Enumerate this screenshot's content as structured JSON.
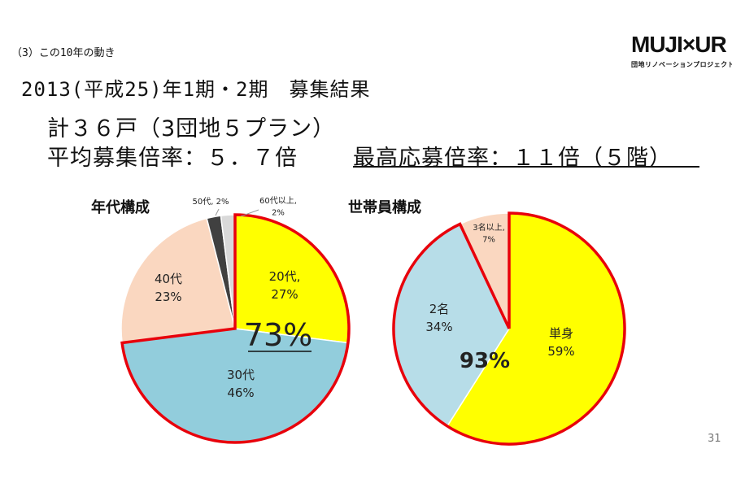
{
  "header": {
    "section_label": "（3）この10年の動き",
    "title": "2013(平成25)年1期・2期　募集結果",
    "line1": "計３６戸（3団地５プラン）",
    "line2": "平均募集倍率：５．７倍",
    "line2_highlight": "最高応募倍率：１１倍（５階）"
  },
  "logo": {
    "main": "MUJI×UR",
    "sub": "団地リノベーションプロジェクト"
  },
  "page_number": "31",
  "colors": {
    "yellow": "#ffff00",
    "light_blue": "#92cddc",
    "pale_blue": "#b7dde8",
    "peach": "#fad7c0",
    "dark_gray": "#404040",
    "light_gray": "#d9d9d9",
    "highlight_border": "#e8000b"
  },
  "chart_data": [
    {
      "type": "pie",
      "title": "年代構成",
      "slices": [
        {
          "label": "20代",
          "value": 27,
          "text": [
            "20代,",
            "27%"
          ],
          "color": "#ffff00",
          "highlight": true
        },
        {
          "label": "30代",
          "value": 46,
          "text": [
            "30代",
            "46%"
          ],
          "color": "#92cddc",
          "highlight": true
        },
        {
          "label": "40代",
          "value": 23,
          "text": [
            "40代",
            "23%"
          ],
          "color": "#fad7c0",
          "highlight": false
        },
        {
          "label": "50代",
          "value": 2,
          "text": [
            "50代, 2%"
          ],
          "color": "#404040",
          "highlight": false
        },
        {
          "label": "60代以上",
          "value": 2,
          "text": [
            "60代以上,",
            "2%"
          ],
          "color": "#d9d9d9",
          "highlight": false
        }
      ],
      "highlight_total": "73%"
    },
    {
      "type": "pie",
      "title": "世帯員構成",
      "slices": [
        {
          "label": "単身",
          "value": 59,
          "text": [
            "単身",
            "59%"
          ],
          "color": "#ffff00",
          "highlight": true
        },
        {
          "label": "2名",
          "value": 34,
          "text": [
            "2名",
            "34%"
          ],
          "color": "#b7dde8",
          "highlight": true
        },
        {
          "label": "3名以上",
          "value": 7,
          "text": [
            "3名以上,",
            "7%"
          ],
          "color": "#fad7c0",
          "highlight": false
        }
      ],
      "highlight_total": "93%"
    }
  ]
}
